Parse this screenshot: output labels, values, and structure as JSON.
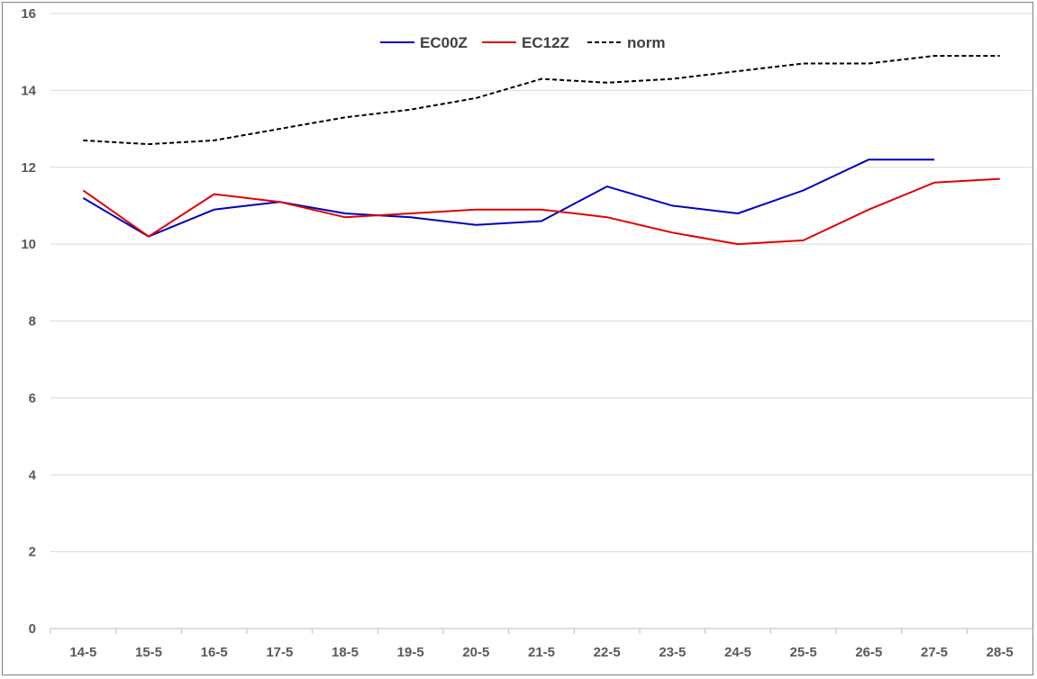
{
  "chart_data": {
    "type": "line",
    "categories": [
      "14-5",
      "15-5",
      "16-5",
      "17-5",
      "18-5",
      "19-5",
      "20-5",
      "21-5",
      "22-5",
      "23-5",
      "24-5",
      "25-5",
      "26-5",
      "27-5",
      "28-5"
    ],
    "ylim": [
      0,
      16
    ],
    "yticks": [
      0,
      2,
      4,
      6,
      8,
      10,
      12,
      14,
      16
    ],
    "grid": true,
    "legend_position": "top-center",
    "series": [
      {
        "name": "EC00Z",
        "color": "#0000c0",
        "dash": "solid",
        "values": [
          11.2,
          10.2,
          10.9,
          11.1,
          10.8,
          10.7,
          10.5,
          10.6,
          11.5,
          11.0,
          10.8,
          11.4,
          12.2,
          12.2,
          null
        ]
      },
      {
        "name": "EC12Z",
        "color": "#e00000",
        "dash": "solid",
        "values": [
          11.4,
          10.2,
          11.3,
          11.1,
          10.7,
          10.8,
          10.9,
          10.9,
          10.7,
          10.3,
          10.0,
          10.1,
          10.9,
          11.6,
          11.7
        ]
      },
      {
        "name": "norm",
        "color": "#000000",
        "dash": "dashed",
        "values": [
          12.7,
          12.6,
          12.7,
          13.0,
          13.3,
          13.5,
          13.8,
          14.3,
          14.2,
          14.3,
          14.5,
          14.7,
          14.7,
          14.9,
          14.9
        ]
      }
    ]
  }
}
